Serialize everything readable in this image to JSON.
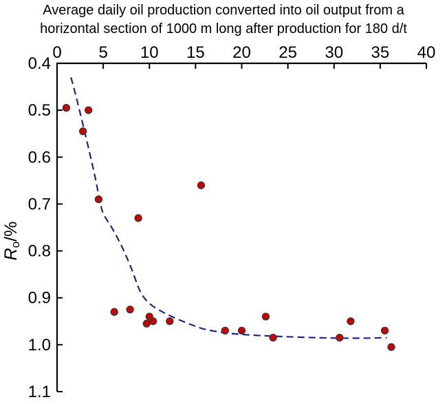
{
  "chart_data": {
    "type": "scatter",
    "title": "Average daily oil production converted into oil output from a horizontal section of 1000 m long after production for 180 d/t",
    "title_lines": [
      "Average daily oil production converted into oil output from a",
      "horizontal section of 1000 m long after production for 180 d/t"
    ],
    "xlabel": "Average daily oil production converted into oil output from a horizontal section of 1000 m long after production for 180 d/t",
    "xlabel_position": "top",
    "ylabel": "Ro/%",
    "ylabel_parts": {
      "symbol": "R",
      "subscript": "o",
      "rest": "/%"
    },
    "x_axis": {
      "min": 0,
      "max": 40,
      "side": "top",
      "ticks": [
        0,
        5,
        10,
        15,
        20,
        25,
        30,
        35,
        40
      ]
    },
    "y_axis": {
      "min": 0.4,
      "max": 1.1,
      "inverted": true,
      "increases": "downward",
      "ticks": [
        "0.4",
        "0.5",
        "0.6",
        "0.7",
        "0.8",
        "0.9",
        "1.0",
        "1.1"
      ]
    },
    "grid": false,
    "legend": "none",
    "points": [
      {
        "x": 1.0,
        "y": 0.495
      },
      {
        "x": 3.4,
        "y": 0.5
      },
      {
        "x": 2.8,
        "y": 0.545
      },
      {
        "x": 4.5,
        "y": 0.69
      },
      {
        "x": 8.8,
        "y": 0.73
      },
      {
        "x": 15.6,
        "y": 0.66
      },
      {
        "x": 6.2,
        "y": 0.93
      },
      {
        "x": 7.9,
        "y": 0.925
      },
      {
        "x": 10.0,
        "y": 0.94
      },
      {
        "x": 9.7,
        "y": 0.955
      },
      {
        "x": 10.4,
        "y": 0.95
      },
      {
        "x": 12.2,
        "y": 0.95
      },
      {
        "x": 18.2,
        "y": 0.97
      },
      {
        "x": 20.0,
        "y": 0.97
      },
      {
        "x": 22.6,
        "y": 0.94
      },
      {
        "x": 23.4,
        "y": 0.985
      },
      {
        "x": 30.6,
        "y": 0.985
      },
      {
        "x": 31.8,
        "y": 0.95
      },
      {
        "x": 35.5,
        "y": 0.97
      },
      {
        "x": 36.2,
        "y": 1.005
      }
    ],
    "trend_curve": {
      "style": "dashed",
      "color": "#22228e",
      "points": [
        [
          1.5,
          0.43
        ],
        [
          2.0,
          0.466
        ],
        [
          3.0,
          0.547
        ],
        [
          4.0,
          0.632
        ],
        [
          4.6,
          0.69
        ],
        [
          5.0,
          0.72
        ],
        [
          6.0,
          0.753
        ],
        [
          7.0,
          0.79
        ],
        [
          8.0,
          0.835
        ],
        [
          9.0,
          0.886
        ],
        [
          10.0,
          0.912
        ],
        [
          11.5,
          0.931
        ],
        [
          13.0,
          0.945
        ],
        [
          14.5,
          0.957
        ],
        [
          16.0,
          0.967
        ],
        [
          18.0,
          0.974
        ],
        [
          20.0,
          0.978
        ],
        [
          22.5,
          0.981
        ],
        [
          25.0,
          0.983
        ],
        [
          28.0,
          0.985
        ],
        [
          31.0,
          0.986
        ],
        [
          33.5,
          0.986
        ],
        [
          35.7,
          0.985
        ]
      ]
    },
    "colors": {
      "point_fill": "#cc0000",
      "point_edge": "#3a3a3a",
      "curve": "#22228e",
      "axis": "#000000",
      "background": "#ffffff"
    }
  }
}
